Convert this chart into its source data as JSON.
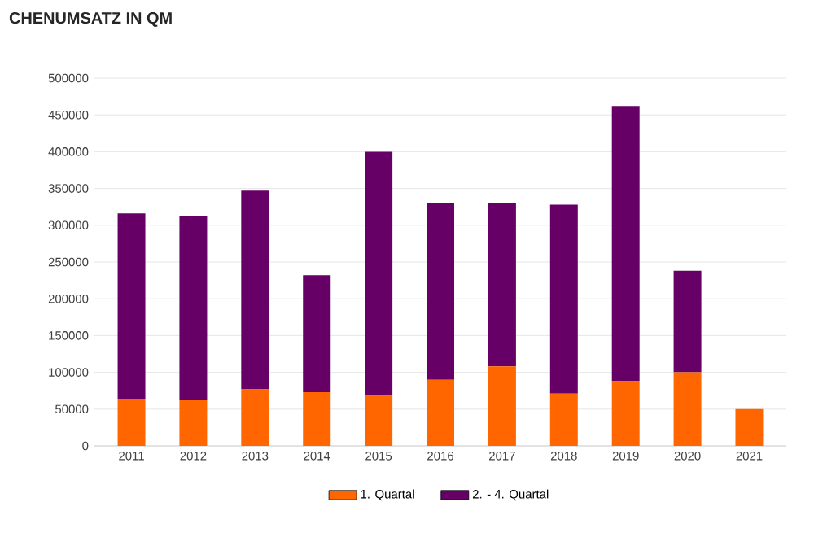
{
  "chart_data": {
    "type": "bar",
    "stacked": true,
    "title": "CHENUMSATZ IN QM",
    "categories": [
      "2011",
      "2012",
      "2013",
      "2014",
      "2015",
      "2016",
      "2017",
      "2018",
      "2019",
      "2020",
      "2021"
    ],
    "series": [
      {
        "name": "1. Quartal",
        "color": "#ff6600",
        "values": [
          64000,
          62000,
          77000,
          73000,
          68000,
          90000,
          108000,
          71000,
          88000,
          100000,
          50000
        ]
      },
      {
        "name": "2. - 4. Quartal",
        "color": "#660066",
        "values": [
          252000,
          250000,
          270000,
          159000,
          332000,
          240000,
          222000,
          257000,
          374000,
          138000,
          null
        ]
      }
    ],
    "ylim": [
      0,
      500000
    ],
    "yticks": [
      0,
      50000,
      100000,
      150000,
      200000,
      250000,
      300000,
      350000,
      400000,
      450000,
      500000
    ],
    "grid": "y",
    "legend": "bottom"
  }
}
